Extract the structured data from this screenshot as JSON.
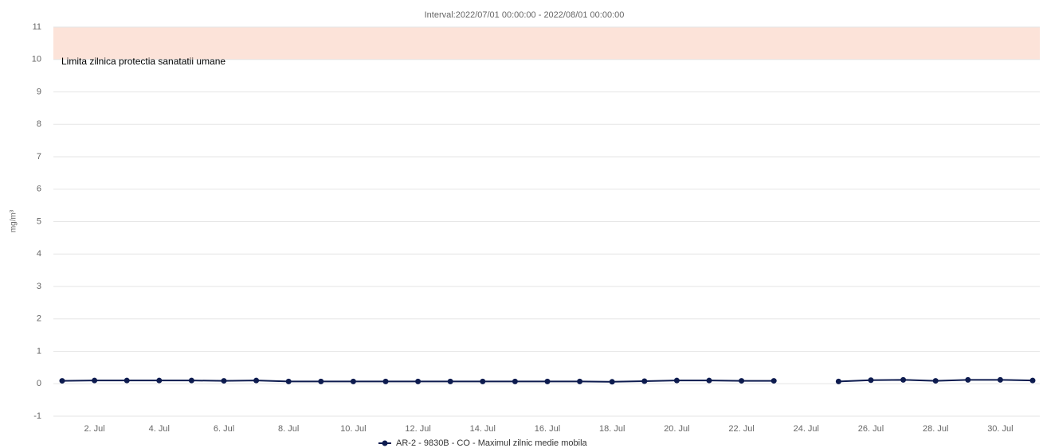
{
  "chart_data": {
    "type": "line",
    "title": "Interval:2022/07/01 00:00:00 - 2022/08/01 00:00:00",
    "y_label": "mg/m³",
    "categories": [
      null,
      "2. Jul",
      null,
      "4. Jul",
      null,
      "6. Jul",
      null,
      "8. Jul",
      null,
      "10. Jul",
      null,
      "12. Jul",
      null,
      "14. Jul",
      null,
      "16. Jul",
      null,
      "18. Jul",
      null,
      "20. Jul",
      null,
      "22. Jul",
      null,
      "24. Jul",
      null,
      "26. Jul",
      null,
      "28. Jul",
      null,
      "30. Jul",
      null
    ],
    "series": [
      {
        "name": "AR-2 - 9830B - CO - Maximul zilnic medie mobila",
        "color": "#0d1b4f",
        "values": [
          0.09,
          0.1,
          0.1,
          0.1,
          0.1,
          0.09,
          0.1,
          0.07,
          0.07,
          0.07,
          0.07,
          0.07,
          0.07,
          0.07,
          0.07,
          0.07,
          0.07,
          0.06,
          0.08,
          0.1,
          0.1,
          0.09,
          0.09,
          null,
          0.07,
          0.11,
          0.12,
          0.09,
          0.12,
          0.12,
          0.1
        ]
      }
    ],
    "ylim": [
      -1,
      11
    ],
    "yticks": [
      -1,
      0,
      1,
      2,
      3,
      4,
      5,
      6,
      7,
      8,
      9,
      10,
      11
    ],
    "grid": true,
    "plot_band": {
      "from": 10,
      "to": 11,
      "color": "#fce3d9",
      "label": "Limita zilnica protectia sanatatii umane"
    },
    "legend": "bottom"
  }
}
